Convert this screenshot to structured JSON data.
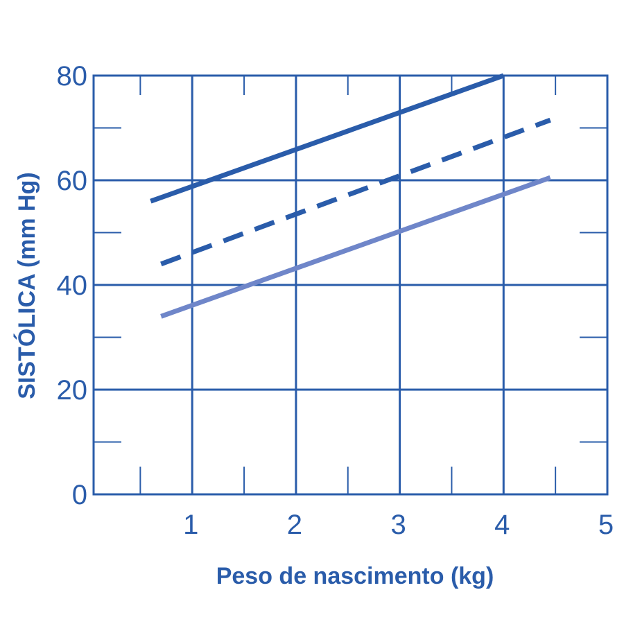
{
  "chart_data": {
    "type": "line",
    "title": "",
    "xlabel": "Peso de nascimento (kg)",
    "ylabel": "SISTÓLICA (mm Hg)",
    "xlim": [
      0.05,
      5
    ],
    "ylim": [
      0,
      80
    ],
    "x_ticks": [
      1,
      2,
      3,
      4,
      5
    ],
    "y_ticks": [
      0,
      20,
      40,
      60,
      80
    ],
    "x_minor_ticks": [
      0.5,
      1.5,
      2.5,
      3.5,
      4.5
    ],
    "y_minor_ticks": [
      10,
      30,
      50,
      70
    ],
    "grid": true,
    "legend": "none",
    "series": [
      {
        "x": [
          0.6,
          4.0
        ],
        "y": [
          56,
          80
        ],
        "style": "solid",
        "color": "#2a5caa"
      },
      {
        "x": [
          0.7,
          4.45
        ],
        "y": [
          44,
          71.5
        ],
        "style": "dashed",
        "color": "#2a5caa"
      },
      {
        "x": [
          0.7,
          4.45
        ],
        "y": [
          34,
          60.5
        ],
        "style": "solid",
        "color": "#6f86c9"
      }
    ]
  },
  "colors": {
    "axis": "#2a5caa"
  }
}
